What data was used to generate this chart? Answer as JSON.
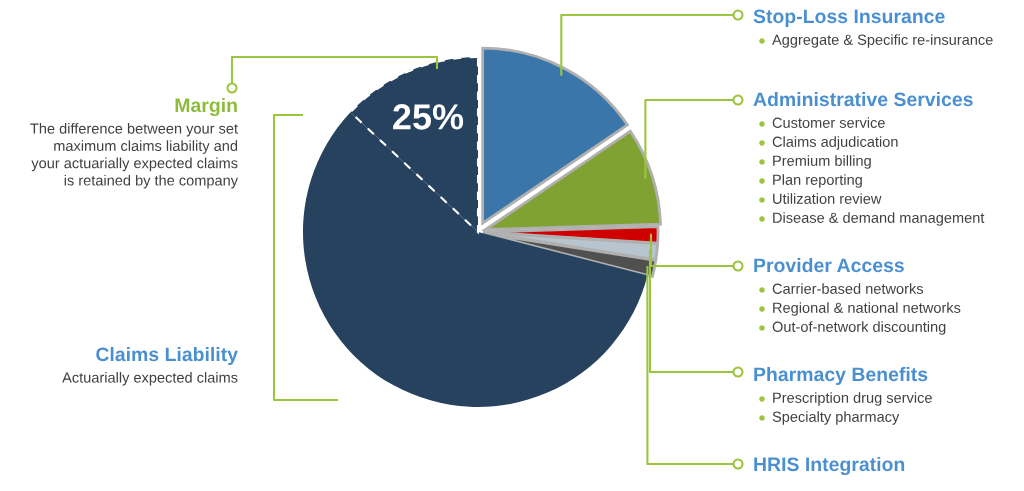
{
  "chart_data": {
    "type": "pie",
    "categories": [
      "Stop-Loss Insurance",
      "Administrative Services",
      "Provider Access",
      "Pharmacy Benefits",
      "HRIS Integration",
      "Claims Liability",
      "Margin"
    ],
    "values": [
      15.5,
      9,
      1.5,
      1.5,
      1.5,
      58,
      13
    ],
    "colors": [
      "#3b76ab",
      "#80a232",
      "#d00000",
      "#b8c4ce",
      "#505050",
      "#27425f",
      "#27425f"
    ],
    "annotations": [
      "25%",
      "Aggregate & Specific re-insurance",
      "Customer service",
      "Claims adjudication",
      "Premium billing",
      "Plan reporting",
      "Utilization review",
      "Disease & demand management",
      "Carrier-based networks",
      "Regional & national networks",
      "Out-of-network discounting",
      "Prescription drug service",
      "Specialty pharmacy",
      "Actuarially expected claims",
      "The difference between your set\nmaximum claims liability and\nyour actuarially expected claims\nis retained by the company"
    ],
    "legend": false
  }
}
